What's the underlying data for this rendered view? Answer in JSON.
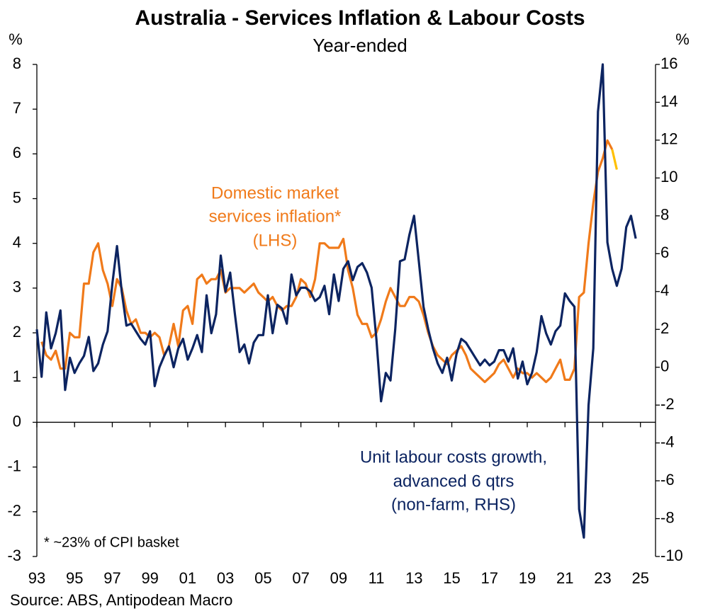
{
  "chart_data": {
    "type": "line",
    "title": "Australia - Services Inflation & Labour Costs",
    "subtitle": "Year-ended",
    "y_label": "%",
    "y2_label": "%",
    "footnote": "* ~23% of CPI basket",
    "source": "Source: ABS, Antipodean Macro",
    "annotations": [
      {
        "lines": [
          "Domestic market",
          "services inflation*",
          "(LHS)"
        ],
        "color": "#f07a1a"
      },
      {
        "lines": [
          "Unit labour costs growth,",
          "advanced 6 qtrs",
          "(non-farm, RHS)"
        ],
        "color": "#0c2461"
      }
    ],
    "x": [
      1993,
      1993.25,
      1993.5,
      1993.75,
      1994,
      1994.25,
      1994.5,
      1994.75,
      1995,
      1995.25,
      1995.5,
      1995.75,
      1996,
      1996.25,
      1996.5,
      1996.75,
      1997,
      1997.25,
      1997.5,
      1997.75,
      1998,
      1998.25,
      1998.5,
      1998.75,
      1999,
      1999.25,
      1999.5,
      1999.75,
      2000,
      2000.25,
      2000.5,
      2000.75,
      2001,
      2001.25,
      2001.5,
      2001.75,
      2002,
      2002.25,
      2002.5,
      2002.75,
      2003,
      2003.25,
      2003.5,
      2003.75,
      2004,
      2004.25,
      2004.5,
      2004.75,
      2005,
      2005.25,
      2005.5,
      2005.75,
      2006,
      2006.25,
      2006.5,
      2006.75,
      2007,
      2007.25,
      2007.5,
      2007.75,
      2008,
      2008.25,
      2008.5,
      2008.75,
      2009,
      2009.25,
      2009.5,
      2009.75,
      2010,
      2010.25,
      2010.5,
      2010.75,
      2011,
      2011.25,
      2011.5,
      2011.75,
      2012,
      2012.25,
      2012.5,
      2012.75,
      2013,
      2013.25,
      2013.5,
      2013.75,
      2014,
      2014.25,
      2014.5,
      2014.75,
      2015,
      2015.25,
      2015.5,
      2015.75,
      2016,
      2016.25,
      2016.5,
      2016.75,
      2017,
      2017.25,
      2017.5,
      2017.75,
      2018,
      2018.25,
      2018.5,
      2018.75,
      2019,
      2019.25,
      2019.5,
      2019.75,
      2020,
      2020.25,
      2020.5,
      2020.75,
      2021,
      2021.25,
      2021.5,
      2021.75,
      2022,
      2022.25,
      2022.5,
      2022.75,
      2023,
      2023.25,
      2023.5,
      2023.75,
      2024,
      2024.25,
      2024.5,
      2024.75,
      2025
    ],
    "series": [
      {
        "color": "#f07a1a",
        "axis": "y",
        "values": [
          null,
          1.8,
          1.5,
          1.4,
          1.6,
          1.2,
          1.2,
          2.0,
          1.9,
          1.9,
          3.1,
          3.1,
          3.8,
          4.0,
          3.4,
          3.1,
          2.6,
          3.2,
          3.0,
          2.5,
          2.2,
          2.3,
          2.0,
          2.0,
          1.9,
          2.0,
          1.9,
          1.5,
          1.7,
          2.2,
          1.7,
          2.5,
          2.6,
          2.2,
          3.2,
          3.3,
          3.1,
          3.2,
          3.2,
          3.4,
          2.9,
          3.0,
          3.0,
          3.0,
          2.9,
          3.0,
          3.1,
          2.9,
          2.8,
          2.7,
          2.8,
          2.6,
          2.5,
          2.6,
          2.6,
          2.8,
          3.2,
          3.1,
          2.8,
          3.2,
          4.0,
          4.0,
          3.9,
          3.9,
          3.9,
          4.1,
          3.4,
          3.0,
          2.4,
          2.2,
          2.2,
          1.9,
          2.0,
          2.3,
          2.7,
          3.0,
          2.8,
          2.6,
          2.6,
          2.8,
          2.8,
          2.7,
          2.4,
          2.0,
          1.7,
          1.5,
          1.4,
          1.3,
          1.5,
          1.6,
          1.7,
          1.5,
          1.2,
          1.1,
          1.0,
          0.9,
          1.0,
          1.1,
          1.3,
          1.4,
          1.2,
          1.0,
          1.2,
          1.1,
          1.1,
          1.0,
          1.1,
          1.0,
          0.9,
          1.0,
          1.2,
          1.4,
          0.95,
          0.95,
          1.2,
          2.8,
          2.9,
          4.0,
          4.9,
          5.6,
          5.9,
          6.3,
          6.1,
          null,
          null,
          null,
          null,
          null,
          null
        ]
      },
      {
        "color": "#ffc000",
        "axis": "y",
        "values": [
          null,
          null,
          null,
          null,
          null,
          null,
          null,
          null,
          null,
          null,
          null,
          null,
          null,
          null,
          null,
          null,
          null,
          null,
          null,
          null,
          null,
          null,
          null,
          null,
          null,
          null,
          null,
          null,
          null,
          null,
          null,
          null,
          null,
          null,
          null,
          null,
          null,
          null,
          null,
          null,
          null,
          null,
          null,
          null,
          null,
          null,
          null,
          null,
          null,
          null,
          null,
          null,
          null,
          null,
          null,
          null,
          null,
          null,
          null,
          null,
          null,
          null,
          null,
          null,
          null,
          null,
          null,
          null,
          null,
          null,
          null,
          null,
          null,
          null,
          null,
          null,
          null,
          null,
          null,
          null,
          null,
          null,
          null,
          null,
          null,
          null,
          null,
          null,
          null,
          null,
          null,
          null,
          null,
          null,
          null,
          null,
          null,
          null,
          null,
          null,
          null,
          null,
          null,
          null,
          null,
          null,
          null,
          null,
          null,
          null,
          null,
          null,
          null,
          null,
          null,
          null,
          null,
          null,
          null,
          null,
          null,
          null,
          6.1,
          5.65,
          null,
          null,
          null,
          null,
          null
        ]
      },
      {
        "color": "#0c2461",
        "axis": "y2",
        "values": [
          2.0,
          -0.5,
          2.9,
          1.0,
          1.8,
          3.0,
          -1.2,
          0.5,
          -0.3,
          0.2,
          0.6,
          1.6,
          -0.2,
          0.2,
          1.2,
          1.9,
          4.4,
          6.4,
          4.0,
          2.2,
          2.3,
          1.9,
          1.5,
          1.2,
          1.9,
          -1.0,
          0.0,
          0.6,
          1.1,
          0.0,
          1.0,
          1.5,
          0.4,
          1.0,
          1.7,
          0.8,
          3.8,
          1.8,
          2.8,
          5.9,
          4.0,
          5.0,
          2.8,
          0.8,
          1.2,
          0.2,
          1.3,
          1.7,
          1.7,
          3.8,
          1.8,
          3.3,
          3.1,
          2.3,
          4.9,
          3.8,
          4.2,
          4.2,
          4.0,
          3.5,
          3.7,
          4.3,
          2.8,
          4.9,
          3.5,
          5.2,
          5.6,
          4.6,
          5.3,
          5.5,
          5.0,
          4.2,
          1.5,
          -1.8,
          -0.3,
          -0.7,
          2.0,
          5.6,
          5.7,
          7.0,
          8.0,
          5.6,
          3.2,
          2.0,
          1.0,
          0.2,
          -0.3,
          0.5,
          -0.7,
          0.7,
          1.5,
          1.3,
          0.9,
          0.5,
          0.1,
          0.4,
          0.1,
          0.3,
          0.9,
          0.9,
          0.3,
          1.0,
          -0.6,
          0.3,
          -0.9,
          -0.3,
          0.8,
          2.7,
          1.8,
          1.2,
          1.9,
          2.2,
          3.9,
          3.5,
          3.2,
          -7.5,
          -9.0,
          -2.0,
          1.0,
          13.5,
          16.0,
          6.6,
          5.2,
          4.3,
          5.2,
          7.4,
          8.0,
          6.8,
          null
        ]
      }
    ],
    "xlim": [
      1993,
      2025.8
    ],
    "xticks": [
      {
        "value": 1993,
        "label": "93"
      },
      {
        "value": 1995,
        "label": "95"
      },
      {
        "value": 1997,
        "label": "97"
      },
      {
        "value": 1999,
        "label": "99"
      },
      {
        "value": 2001,
        "label": "01"
      },
      {
        "value": 2003,
        "label": "03"
      },
      {
        "value": 2005,
        "label": "05"
      },
      {
        "value": 2007,
        "label": "07"
      },
      {
        "value": 2009,
        "label": "09"
      },
      {
        "value": 2011,
        "label": "11"
      },
      {
        "value": 2013,
        "label": "13"
      },
      {
        "value": 2015,
        "label": "15"
      },
      {
        "value": 2017,
        "label": "17"
      },
      {
        "value": 2019,
        "label": "19"
      },
      {
        "value": 2021,
        "label": "21"
      },
      {
        "value": 2023,
        "label": "23"
      },
      {
        "value": 2025,
        "label": "25"
      }
    ],
    "ylim": [
      -3,
      8
    ],
    "yticks": [
      -3,
      -2,
      -1,
      0,
      1,
      2,
      3,
      4,
      5,
      6,
      7,
      8
    ],
    "y2lim": [
      -10,
      16
    ],
    "y2ticks": [
      -10,
      -8,
      -6,
      -4,
      -2,
      0,
      2,
      4,
      6,
      8,
      10,
      12,
      14,
      16
    ],
    "grid": false
  }
}
